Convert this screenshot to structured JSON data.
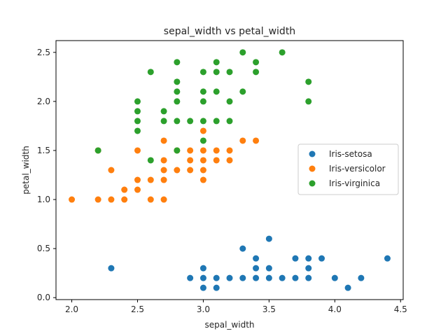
{
  "chart_data": {
    "type": "scatter",
    "title": "sepal_width vs petal_width",
    "xlabel": "sepal_width",
    "ylabel": "petal_width",
    "xlim": [
      1.88,
      4.52
    ],
    "ylim": [
      -0.02,
      2.62
    ],
    "xticks": [
      "2.0",
      "2.5",
      "3.0",
      "3.5",
      "4.0",
      "4.5"
    ],
    "yticks": [
      "0.0",
      "0.5",
      "1.0",
      "1.5",
      "2.0",
      "2.5"
    ],
    "grid": false,
    "legend_position": "center-right",
    "series": [
      {
        "name": "Iris-setosa",
        "color": "#1f77b4",
        "points": [
          [
            2.3,
            0.3
          ],
          [
            2.9,
            0.2
          ],
          [
            3.0,
            0.1
          ],
          [
            3.0,
            0.2
          ],
          [
            3.0,
            0.3
          ],
          [
            3.1,
            0.1
          ],
          [
            3.1,
            0.2
          ],
          [
            3.2,
            0.2
          ],
          [
            3.3,
            0.2
          ],
          [
            3.3,
            0.5
          ],
          [
            3.4,
            0.2
          ],
          [
            3.4,
            0.3
          ],
          [
            3.4,
            0.4
          ],
          [
            3.5,
            0.2
          ],
          [
            3.5,
            0.3
          ],
          [
            3.5,
            0.6
          ],
          [
            3.6,
            0.2
          ],
          [
            3.7,
            0.2
          ],
          [
            3.7,
            0.4
          ],
          [
            3.8,
            0.2
          ],
          [
            3.8,
            0.3
          ],
          [
            3.8,
            0.4
          ],
          [
            3.9,
            0.4
          ],
          [
            4.0,
            0.2
          ],
          [
            4.1,
            0.1
          ],
          [
            4.2,
            0.2
          ],
          [
            4.4,
            0.4
          ]
        ]
      },
      {
        "name": "Iris-versicolor",
        "color": "#ff7f0e",
        "points": [
          [
            2.0,
            1.0
          ],
          [
            2.2,
            1.0
          ],
          [
            2.2,
            1.5
          ],
          [
            2.3,
            1.0
          ],
          [
            2.3,
            1.3
          ],
          [
            2.4,
            1.0
          ],
          [
            2.4,
            1.1
          ],
          [
            2.5,
            1.1
          ],
          [
            2.5,
            1.2
          ],
          [
            2.5,
            1.5
          ],
          [
            2.6,
            1.0
          ],
          [
            2.6,
            1.2
          ],
          [
            2.7,
            1.0
          ],
          [
            2.7,
            1.2
          ],
          [
            2.7,
            1.3
          ],
          [
            2.7,
            1.4
          ],
          [
            2.7,
            1.6
          ],
          [
            2.8,
            1.3
          ],
          [
            2.8,
            1.5
          ],
          [
            2.9,
            1.3
          ],
          [
            2.9,
            1.4
          ],
          [
            2.9,
            1.5
          ],
          [
            3.0,
            1.2
          ],
          [
            3.0,
            1.3
          ],
          [
            3.0,
            1.4
          ],
          [
            3.0,
            1.5
          ],
          [
            3.0,
            1.7
          ],
          [
            3.1,
            1.4
          ],
          [
            3.1,
            1.5
          ],
          [
            3.2,
            1.4
          ],
          [
            3.2,
            1.5
          ],
          [
            3.3,
            1.6
          ],
          [
            3.4,
            1.6
          ]
        ]
      },
      {
        "name": "Iris-virginica",
        "color": "#2ca02c",
        "points": [
          [
            2.2,
            1.5
          ],
          [
            2.5,
            1.7
          ],
          [
            2.5,
            1.8
          ],
          [
            2.5,
            1.9
          ],
          [
            2.5,
            2.0
          ],
          [
            2.6,
            1.4
          ],
          [
            2.6,
            2.3
          ],
          [
            2.7,
            1.8
          ],
          [
            2.7,
            1.9
          ],
          [
            2.8,
            1.5
          ],
          [
            2.8,
            1.8
          ],
          [
            2.8,
            2.0
          ],
          [
            2.8,
            2.1
          ],
          [
            2.8,
            2.2
          ],
          [
            2.8,
            2.4
          ],
          [
            2.9,
            1.8
          ],
          [
            3.0,
            1.6
          ],
          [
            3.0,
            1.8
          ],
          [
            3.0,
            2.0
          ],
          [
            3.0,
            2.1
          ],
          [
            3.0,
            2.3
          ],
          [
            3.1,
            1.8
          ],
          [
            3.1,
            2.1
          ],
          [
            3.1,
            2.3
          ],
          [
            3.1,
            2.4
          ],
          [
            3.2,
            1.8
          ],
          [
            3.2,
            2.0
          ],
          [
            3.2,
            2.3
          ],
          [
            3.3,
            2.1
          ],
          [
            3.3,
            2.5
          ],
          [
            3.4,
            2.3
          ],
          [
            3.4,
            2.4
          ],
          [
            3.6,
            2.5
          ],
          [
            3.8,
            2.0
          ],
          [
            3.8,
            2.2
          ]
        ]
      }
    ]
  }
}
